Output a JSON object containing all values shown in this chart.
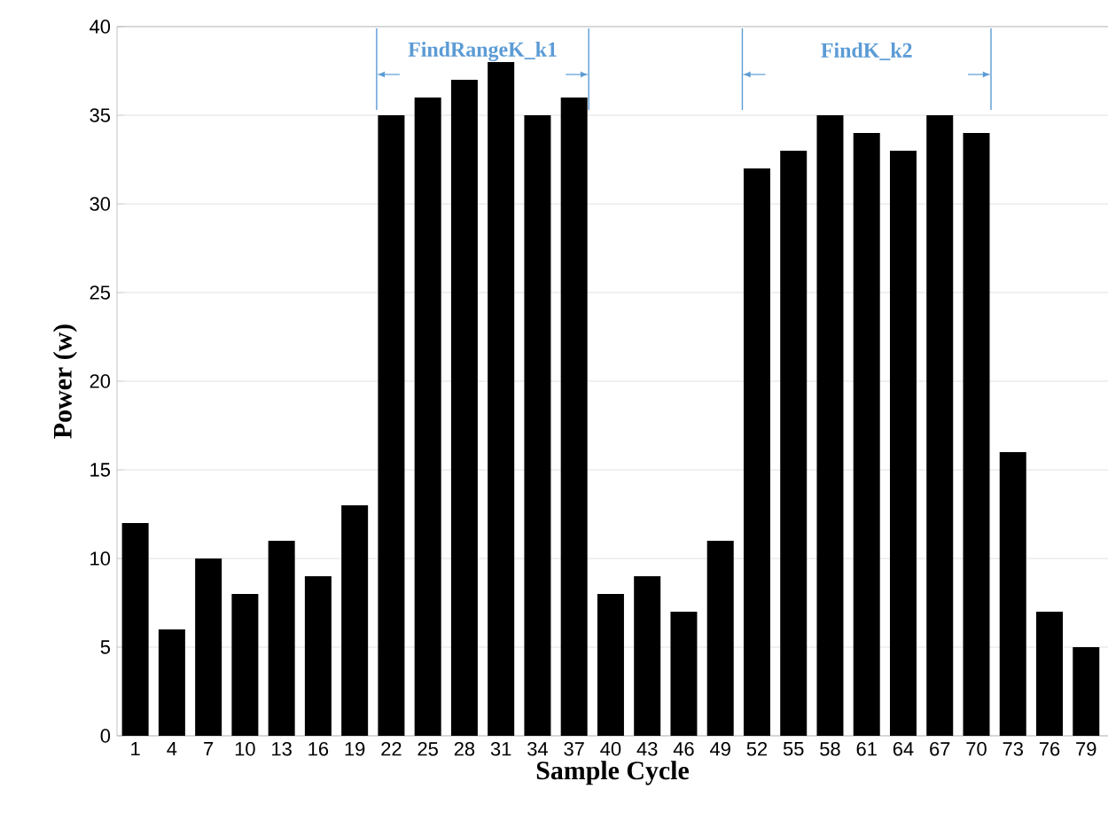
{
  "chart_data": {
    "type": "bar",
    "xlabel": "Sample Cycle",
    "ylabel": "Power (w)",
    "categories": [
      "1",
      "4",
      "7",
      "10",
      "13",
      "16",
      "19",
      "22",
      "25",
      "28",
      "31",
      "34",
      "37",
      "40",
      "43",
      "46",
      "49",
      "52",
      "55",
      "58",
      "61",
      "64",
      "67",
      "70",
      "73",
      "76",
      "79"
    ],
    "values": [
      12,
      6,
      10,
      8,
      11,
      9,
      13,
      35,
      36,
      37,
      38,
      35,
      36,
      8,
      9,
      7,
      11,
      32,
      33,
      35,
      34,
      33,
      35,
      34,
      16,
      7,
      5
    ],
    "color": "#000000",
    "ylim": [
      0,
      40
    ],
    "yticks": [
      0,
      5,
      10,
      15,
      20,
      25,
      30,
      35,
      40
    ],
    "grid": "y",
    "annotations": [
      "FindRangeK_k1",
      "FindK_k2"
    ]
  }
}
